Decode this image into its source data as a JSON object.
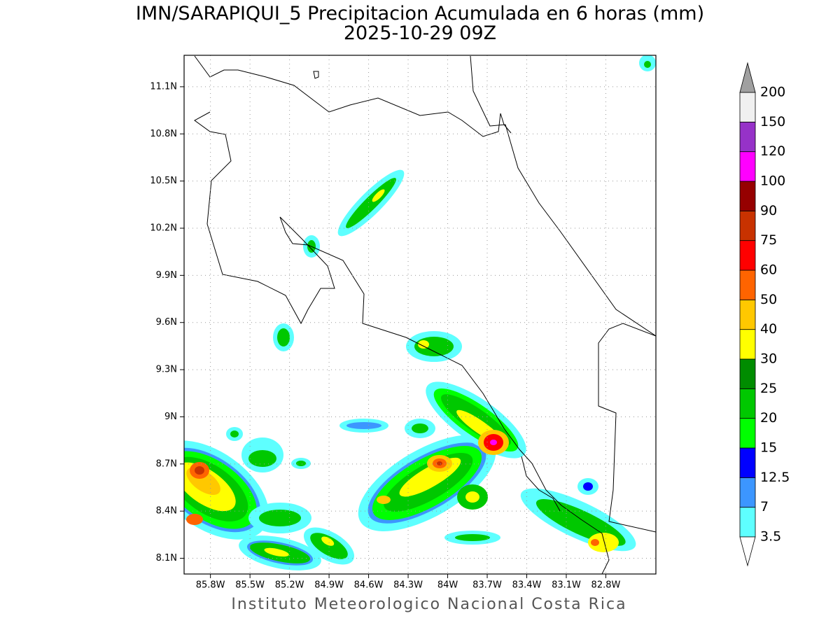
{
  "map": {
    "title": "IMN/SARAPIQUI_5 Precipitacion Acumulada en 6 horas (mm)",
    "subtitle": "2025-10-29 09Z",
    "footer": "Instituto Meteorologico Nacional Costa Rica",
    "latlim": [
      8.0,
      11.3
    ],
    "lonlim": [
      -86.0,
      -82.42
    ],
    "lat_ticks": [
      {
        "value": 11.1,
        "label": "11.1N"
      },
      {
        "value": 10.8,
        "label": "10.8N"
      },
      {
        "value": 10.5,
        "label": "10.5N"
      },
      {
        "value": 10.2,
        "label": "10.2N"
      },
      {
        "value": 9.9,
        "label": "9.9N"
      },
      {
        "value": 9.6,
        "label": "9.6N"
      },
      {
        "value": 9.3,
        "label": "9.3N"
      },
      {
        "value": 9.0,
        "label": "9N"
      },
      {
        "value": 8.7,
        "label": "8.7N"
      },
      {
        "value": 8.4,
        "label": "8.4N"
      },
      {
        "value": 8.1,
        "label": "8.1N"
      }
    ],
    "lon_ticks": [
      {
        "value": -85.8,
        "label": "85.8W"
      },
      {
        "value": -85.5,
        "label": "85.5W"
      },
      {
        "value": -85.2,
        "label": "85.2W"
      },
      {
        "value": -84.9,
        "label": "84.9W"
      },
      {
        "value": -84.6,
        "label": "84.6W"
      },
      {
        "value": -84.3,
        "label": "84.3W"
      },
      {
        "value": -84.0,
        "label": "84W"
      },
      {
        "value": -83.7,
        "label": "83.7W"
      },
      {
        "value": -83.4,
        "label": "83.4W"
      },
      {
        "value": -83.1,
        "label": "83.1W"
      },
      {
        "value": -82.8,
        "label": "82.8W"
      }
    ],
    "grid": true,
    "colorbar": {
      "levels": [
        3.5,
        7,
        12.5,
        15,
        20,
        25,
        30,
        40,
        50,
        60,
        75,
        90,
        100,
        120,
        150,
        200
      ],
      "colors": [
        "#5effff",
        "#3c96ff",
        "#0000ff",
        "#00ff00",
        "#00c800",
        "#008c00",
        "#ffff00",
        "#ffc800",
        "#ff6400",
        "#ff0000",
        "#c83200",
        "#960000",
        "#ff00ff",
        "#9632c8",
        "#f0f0f0"
      ],
      "under_color": "#ffffff",
      "over_color": "#a0a0a0"
    }
  }
}
